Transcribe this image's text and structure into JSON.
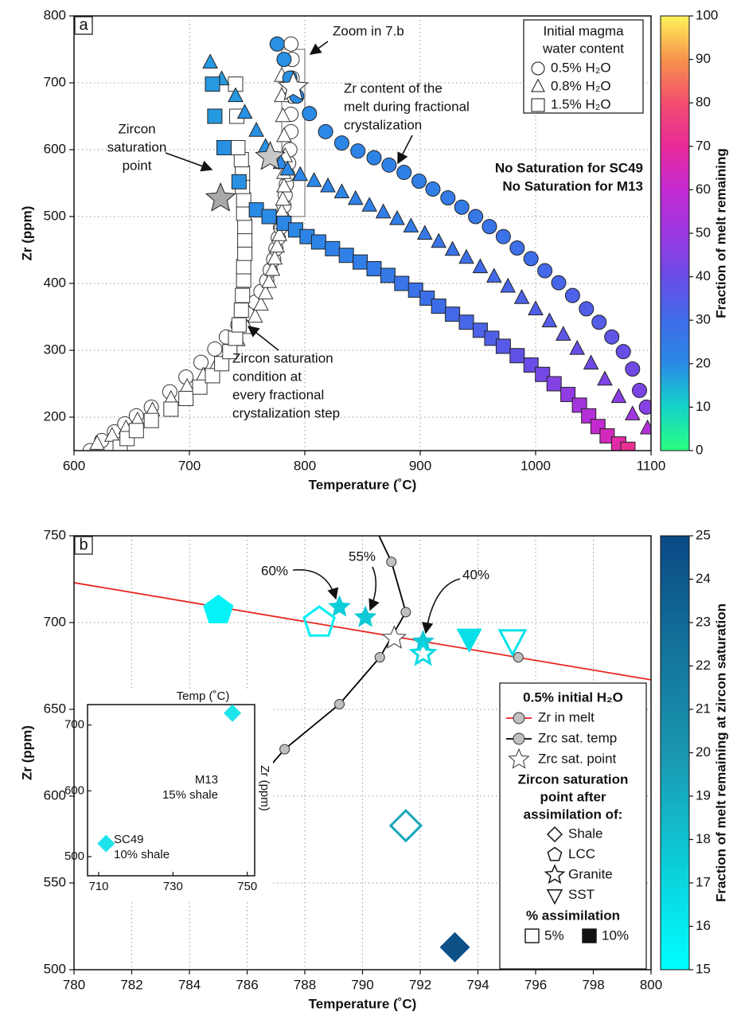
{
  "chart_data": [
    {
      "type": "scatter",
      "panel_label": "a",
      "xlabel": "Temperature (˚C)",
      "ylabel": "Zr (ppm)",
      "xlim": [
        600,
        1100
      ],
      "xticks": [
        600,
        700,
        800,
        900,
        1000,
        1100
      ],
      "ylim": [
        150,
        800
      ],
      "yticks": [
        200,
        300,
        400,
        500,
        600,
        700,
        800
      ],
      "grid": true,
      "colorbar": {
        "label": "Fraction of melt remaining",
        "lim": [
          0,
          100
        ],
        "ticks": [
          0,
          10,
          20,
          30,
          40,
          50,
          60,
          70,
          80,
          90,
          100
        ],
        "colors": [
          "#2bff80",
          "#14d4c8",
          "#2a8ae6",
          "#3f6ce8",
          "#6a4ce6",
          "#9b38e0",
          "#c42ad2",
          "#e82a9a",
          "#f24e6e",
          "#f7934c",
          "#fff35a"
        ]
      },
      "legend": {
        "title": [
          "Initial magma",
          "water content"
        ],
        "items": [
          {
            "label": "0.5% H₂O",
            "marker": "circle"
          },
          {
            "label": "0.8% H₂O",
            "marker": "triangle"
          },
          {
            "label": "1.5% H₂O",
            "marker": "square"
          }
        ]
      },
      "zoom_box": {
        "xlim": [
          780,
          800
        ],
        "ylim": [
          500,
          750
        ]
      },
      "series": [
        {
          "marker": "circle",
          "fill": "#ffffff",
          "stroke": "#333333",
          "x": [
            614,
            624,
            635,
            644,
            654,
            667,
            683,
            697,
            710,
            722,
            732,
            742,
            750,
            757,
            762,
            767,
            770,
            773,
            775,
            777,
            779,
            780,
            782,
            783,
            784,
            785,
            786,
            787,
            788,
            788,
            789,
            789,
            789,
            788
          ],
          "values": [
            150,
            165,
            178,
            190,
            202,
            215,
            238,
            260,
            282,
            302,
            320,
            338,
            355,
            372,
            388,
            404,
            420,
            436,
            452,
            468,
            484,
            500,
            516,
            532,
            548,
            563,
            580,
            600,
            627,
            653,
            680,
            707,
            735,
            758
          ]
        },
        {
          "marker": "triangle",
          "fill": "#ffffff",
          "stroke": "#333333",
          "x": [
            620,
            633,
            645,
            655,
            668,
            684,
            698,
            712,
            724,
            734,
            742,
            750,
            757,
            762,
            766,
            769,
            772,
            774,
            776,
            778,
            779,
            780,
            781,
            782,
            782,
            783,
            782,
            781,
            780,
            780
          ],
          "values": [
            160,
            172,
            183,
            195,
            210,
            227,
            245,
            262,
            280,
            297,
            315,
            333,
            350,
            368,
            385,
            402,
            420,
            437,
            455,
            472,
            490,
            507,
            525,
            545,
            565,
            590,
            620,
            650,
            680,
            710
          ]
        },
        {
          "marker": "square",
          "fill": "#ffffff",
          "stroke": "#333333",
          "x": [
            640,
            646,
            654,
            667,
            684,
            697,
            709,
            720,
            728,
            735,
            740,
            743,
            745,
            746,
            747,
            747,
            748,
            748,
            748,
            747,
            747,
            746,
            746,
            745,
            740,
            741,
            742
          ],
          "values": [
            155,
            168,
            180,
            195,
            212,
            228,
            245,
            262,
            280,
            298,
            318,
            338,
            360,
            382,
            405,
            425,
            445,
            465,
            485,
            505,
            525,
            545,
            565,
            585,
            698,
            650,
            603
          ]
        },
        {
          "marker": "circle",
          "stroke": "#222222",
          "x": [
            776,
            782,
            787,
            793,
            804,
            818,
            832,
            846,
            860,
            873,
            886,
            899,
            911,
            924,
            936,
            948,
            960,
            972,
            984,
            996,
            1008,
            1020,
            1032,
            1044,
            1055,
            1066,
            1076,
            1084,
            1090,
            1096
          ],
          "values": [
            758,
            735,
            707,
            680,
            654,
            627,
            610,
            598,
            588,
            577,
            566,
            553,
            541,
            528,
            514,
            500,
            485,
            470,
            453,
            437,
            419,
            401,
            382,
            362,
            342,
            320,
            298,
            272,
            240,
            215
          ],
          "color_values": [
            19,
            19,
            19,
            20,
            20,
            21,
            21,
            22,
            22,
            23,
            23,
            24,
            24,
            25,
            25,
            26,
            27,
            28,
            29,
            30,
            31,
            32,
            33,
            34,
            35,
            37,
            39,
            41,
            43,
            46
          ]
        },
        {
          "marker": "triangle",
          "stroke": "#222222",
          "x": [
            718,
            728,
            740,
            748,
            758,
            766,
            779,
            785,
            796,
            808,
            820,
            832,
            844,
            856,
            868,
            880,
            892,
            904,
            916,
            928,
            940,
            952,
            964,
            976,
            988,
            1000,
            1012,
            1024,
            1036,
            1048,
            1060,
            1072,
            1084,
            1097
          ],
          "values": [
            730,
            705,
            680,
            655,
            628,
            604,
            580,
            570,
            562,
            553,
            545,
            536,
            526,
            516,
            506,
            496,
            485,
            474,
            462,
            450,
            438,
            424,
            410,
            395,
            378,
            361,
            343,
            323,
            302,
            280,
            256,
            230,
            204,
            183
          ],
          "color_values": [
            18,
            18,
            18,
            19,
            19,
            19,
            20,
            20,
            21,
            21,
            22,
            22,
            23,
            23,
            24,
            24,
            25,
            26,
            27,
            28,
            29,
            30,
            31,
            32,
            33,
            34,
            35,
            37,
            39,
            41,
            44,
            47,
            51,
            56
          ]
        },
        {
          "marker": "square",
          "stroke": "#222222",
          "x": [
            720,
            722,
            730,
            743,
            758,
            769,
            782,
            792,
            802,
            812,
            824,
            836,
            848,
            860,
            872,
            884,
            896,
            906,
            916,
            928,
            940,
            952,
            962,
            972,
            984,
            996,
            1006,
            1016,
            1028,
            1038,
            1046,
            1054,
            1062,
            1072,
            1080
          ],
          "values": [
            698,
            650,
            603,
            552,
            510,
            500,
            490,
            480,
            470,
            462,
            452,
            442,
            432,
            422,
            412,
            400,
            390,
            378,
            366,
            354,
            342,
            330,
            318,
            306,
            292,
            278,
            264,
            250,
            234,
            218,
            202,
            186,
            172,
            160,
            152
          ],
          "color_values": [
            18,
            18,
            19,
            19,
            20,
            20,
            21,
            21,
            22,
            22,
            23,
            23,
            24,
            25,
            26,
            27,
            28,
            29,
            30,
            31,
            32,
            33,
            34,
            36,
            38,
            40,
            42,
            45,
            48,
            52,
            56,
            60,
            64,
            68,
            72
          ]
        },
        {
          "marker": "star",
          "stroke": "#222222",
          "colors": [
            "#ffffff",
            "#c8c8c8",
            "#a8a8a8"
          ],
          "x": [
            790,
            770,
            727
          ],
          "values": [
            693,
            589,
            527
          ]
        }
      ],
      "annotations": [
        [
          "Zoom in 7.b"
        ],
        [
          "Zr content of the",
          "melt during fractional",
          "crystalization"
        ],
        [
          "Zircon",
          "saturation",
          "point"
        ],
        [
          "No Saturation for SC49",
          "No Saturation for M13"
        ],
        [
          "Zircon saturation",
          "condition at",
          "every fractional",
          "crystalization step"
        ]
      ]
    },
    {
      "type": "scatter",
      "panel_label": "b",
      "xlabel": "Temperature (˚C)",
      "ylabel": "Zr (ppm)",
      "xlim": [
        780,
        800
      ],
      "xticks": [
        780,
        782,
        784,
        786,
        788,
        790,
        792,
        794,
        796,
        798,
        800
      ],
      "ylim": [
        500,
        750
      ],
      "yticks": [
        500,
        550,
        600,
        650,
        700,
        750
      ],
      "grid": true,
      "colorbar": {
        "label": "Fraction of melt remaining at zircon saturation",
        "lim": [
          15,
          25
        ],
        "ticks": [
          15,
          16,
          17,
          18,
          19,
          20,
          21,
          22,
          23,
          24,
          25
        ],
        "colors": [
          "#00ffff",
          "#1a97b0",
          "#0b4a85"
        ]
      },
      "series": [
        {
          "line": "#e8251f",
          "x": [
            780,
            800
          ],
          "values": [
            723,
            667
          ]
        },
        {
          "line": "#000000",
          "marker": "circle",
          "fill": "#c0c0c0",
          "stroke": "#333333",
          "x": [
            786.2,
            787.3,
            789.2,
            790.6,
            791.5,
            791,
            790.4
          ],
          "values": [
            606,
            627,
            653,
            680,
            706,
            735,
            756
          ]
        },
        {
          "marker": "circle",
          "fill": "#c0c0c0",
          "stroke": "#333333",
          "x": [
            795.4
          ],
          "values": [
            680
          ]
        },
        {
          "marker": "star",
          "fill": "#ffffff",
          "stroke": "#333333",
          "x": [
            791.1
          ],
          "values": [
            691
          ]
        },
        {
          "marker": "pentagon",
          "filled": true,
          "x": [
            785
          ],
          "values": [
            707
          ],
          "color_values": [
            15.6
          ]
        },
        {
          "marker": "pentagon",
          "filled": false,
          "x": [
            788.5
          ],
          "values": [
            700
          ],
          "color_values": [
            15.8
          ]
        },
        {
          "marker": "star",
          "filled": true,
          "x": [
            789.2,
            790.1,
            792.1
          ],
          "values": [
            709,
            703,
            689
          ],
          "color_values": [
            17.4,
            17.6,
            17.6
          ]
        },
        {
          "marker": "star",
          "filled": false,
          "x": [
            792.1
          ],
          "values": [
            682
          ],
          "color_values": [
            16.8
          ]
        },
        {
          "marker": "triangle-down",
          "filled": true,
          "x": [
            793.7
          ],
          "values": [
            691
          ],
          "color_values": [
            16.6
          ]
        },
        {
          "marker": "triangle-down",
          "filled": false,
          "x": [
            795.2
          ],
          "values": [
            690
          ],
          "color_values": [
            16.4
          ]
        },
        {
          "marker": "diamond",
          "filled": false,
          "x": [
            791.5
          ],
          "values": [
            583
          ],
          "color_values": [
            19.3
          ]
        },
        {
          "marker": "diamond",
          "filled": true,
          "x": [
            793.2
          ],
          "values": [
            513
          ],
          "color_values": [
            24.6
          ]
        }
      ],
      "annotations": [
        [
          "60%"
        ],
        [
          "55%"
        ],
        [
          "40%"
        ]
      ],
      "legend": {
        "title": "0.5% initial H₂O",
        "items": [
          {
            "label": "Zr in melt",
            "marker": "circle",
            "line": "#e8251f"
          },
          {
            "label": "Zrc sat. temp",
            "marker": "circle",
            "line": "#000000"
          },
          {
            "label": "Zrc sat. point",
            "marker": "star"
          }
        ],
        "subtitle": [
          "Zircon saturation",
          "point after",
          "assimilation of:"
        ],
        "shapes": [
          {
            "label": "Shale",
            "marker": "diamond"
          },
          {
            "label": "LCC",
            "marker": "pentagon"
          },
          {
            "label": "Granite",
            "marker": "star"
          },
          {
            "label": "SST",
            "marker": "triangle-down"
          }
        ],
        "fill_title": "% assimilation",
        "fills": [
          {
            "label": "5%",
            "filled": false
          },
          {
            "label": "10%",
            "filled": true
          }
        ]
      },
      "inset": {
        "xlabel": "Temp (˚C)",
        "ylabel": "Zr (ppm)",
        "xlim": [
          707,
          752
        ],
        "xticks": [
          710,
          730,
          750
        ],
        "ylim": [
          471,
          731
        ],
        "yticks": [
          500,
          600,
          700
        ],
        "color": "#1fe3ea",
        "x": [
          712,
          746
        ],
        "values": [
          520,
          718
        ],
        "labels": [
          [
            "SC49",
            "10% shale"
          ],
          [
            "M13",
            "15% shale"
          ]
        ]
      }
    }
  ]
}
